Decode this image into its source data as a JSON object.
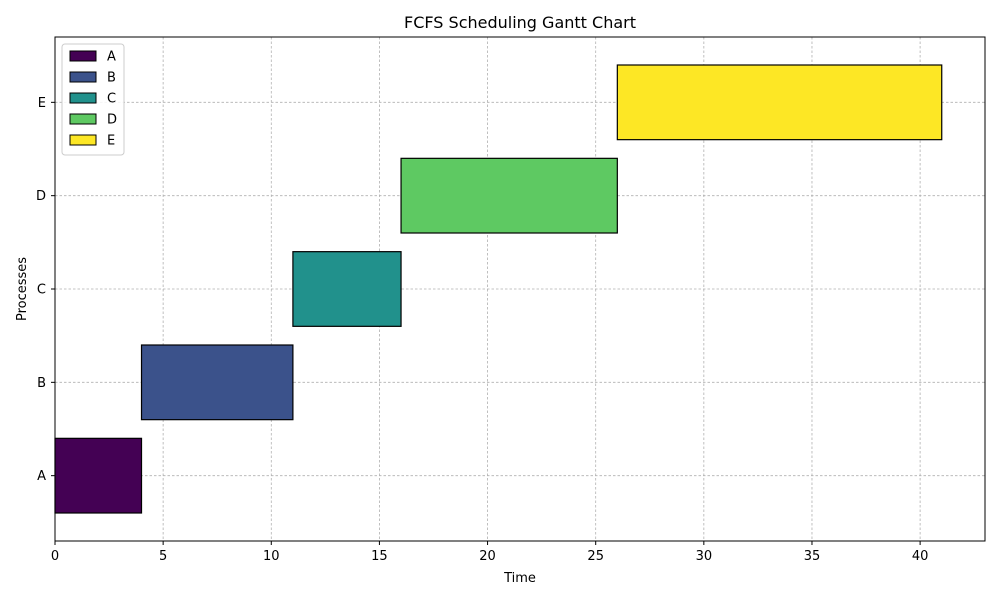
{
  "chart_data": {
    "type": "gantt",
    "title": "FCFS Scheduling Gantt Chart",
    "xlabel": "Time",
    "ylabel": "Processes",
    "xlim": [
      0,
      43
    ],
    "xticks": [
      0,
      5,
      10,
      15,
      20,
      25,
      30,
      35,
      40
    ],
    "categories": [
      "A",
      "B",
      "C",
      "D",
      "E"
    ],
    "tasks": [
      {
        "name": "A",
        "start": 0,
        "end": 4,
        "color": "#440154"
      },
      {
        "name": "B",
        "start": 4,
        "end": 11,
        "color": "#3b528b"
      },
      {
        "name": "C",
        "start": 11,
        "end": 16,
        "color": "#21918c"
      },
      {
        "name": "D",
        "start": 16,
        "end": 26,
        "color": "#5ec962"
      },
      {
        "name": "E",
        "start": 26,
        "end": 41,
        "color": "#fde725"
      }
    ],
    "grid": true,
    "legend": "top-left"
  }
}
